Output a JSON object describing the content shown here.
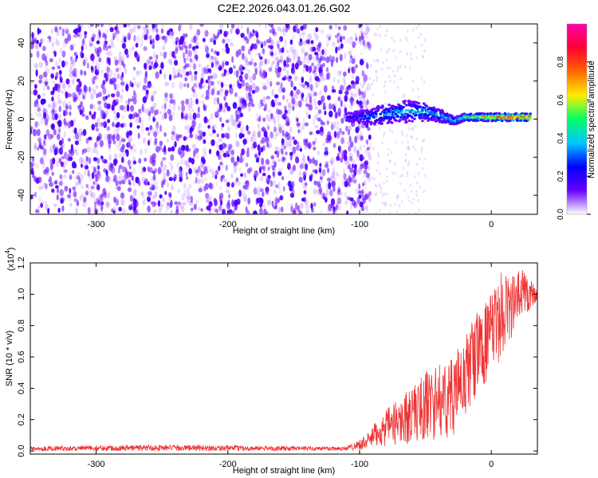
{
  "figure": {
    "title": "C2E2.2026.043.01.26.G02"
  },
  "chart_data": [
    {
      "type": "heatmap",
      "xlabel": "Height of straight line (km)",
      "ylabel": "Frequency (Hz)",
      "xlim": [
        -350,
        35
      ],
      "ylim": [
        -50,
        50
      ],
      "xticks": [
        -300,
        -200,
        -100,
        0
      ],
      "yticks": [
        -40,
        -20,
        0,
        20,
        40
      ],
      "noise_region_x": [
        -350,
        -100
      ],
      "signal_track": {
        "x": [
          -110,
          -95,
          -85,
          -75,
          -65,
          -55,
          -45,
          -35,
          -28,
          -20,
          -10,
          0,
          10,
          20,
          30
        ],
        "center_hz": [
          1,
          1,
          2,
          3,
          4,
          4,
          3,
          1,
          -1,
          1,
          1,
          1,
          1,
          1,
          1
        ],
        "halfwidth_hz": [
          2,
          4,
          5,
          5,
          6,
          5,
          4,
          3,
          2,
          2,
          2,
          2,
          2,
          2,
          2
        ],
        "peak_amplitude": [
          0.2,
          0.35,
          0.4,
          0.42,
          0.45,
          0.45,
          0.45,
          0.45,
          0.5,
          0.55,
          0.75,
          0.85,
          0.95,
          0.95,
          0.95
        ]
      },
      "colorbar": {
        "label": "Normalized spectral amplitude",
        "ticks": [
          "0.0",
          "0.2",
          "0.4",
          "0.6",
          "0.8"
        ],
        "range": [
          0,
          1
        ],
        "colors": [
          "#ffffff",
          "#6600ff",
          "#0000ff",
          "#00c8ff",
          "#00ff66",
          "#ffee00",
          "#ff6600",
          "#ff0033",
          "#ff00aa"
        ]
      },
      "grid": false
    },
    {
      "type": "line",
      "xlabel": "Height of straight line (km)",
      "ylabel": "SNR (10 * v/v)",
      "exponent_label_base": "(x10",
      "exponent_label_power": "4",
      "exponent_label_close": ")",
      "xlim": [
        -350,
        35
      ],
      "ylim": [
        -0.02,
        1.2
      ],
      "xticks": [
        -300,
        -200,
        -100,
        0
      ],
      "yticks": [
        "0.0",
        "0.2",
        "0.4",
        "0.6",
        "0.8",
        "1.0",
        "1.2"
      ],
      "series": [
        {
          "color": "#ee3333",
          "envelope": {
            "x": [
              -350,
              -300,
              -260,
              -200,
              -150,
              -110,
              -95,
              -85,
              -75,
              -65,
              -55,
              -48,
              -40,
              -30,
              -20,
              -15,
              -10,
              -5,
              0,
              5,
              10,
              15,
              20,
              25,
              30,
              35
            ],
            "min": [
              0.0,
              0.0,
              0.0,
              0.0,
              0.0,
              0.0,
              0.01,
              0.02,
              0.03,
              0.04,
              0.05,
              0.06,
              0.07,
              0.09,
              0.18,
              0.28,
              0.35,
              0.42,
              0.48,
              0.55,
              0.62,
              0.7,
              0.78,
              0.85,
              0.9,
              0.95
            ],
            "max": [
              0.03,
              0.035,
              0.04,
              0.035,
              0.03,
              0.03,
              0.1,
              0.22,
              0.3,
              0.38,
              0.46,
              0.53,
              0.55,
              0.6,
              0.72,
              0.85,
              0.9,
              0.95,
              1.0,
              1.08,
              1.2,
              1.12,
              1.15,
              1.18,
              1.1,
              1.05
            ]
          }
        }
      ],
      "grid": false
    }
  ]
}
